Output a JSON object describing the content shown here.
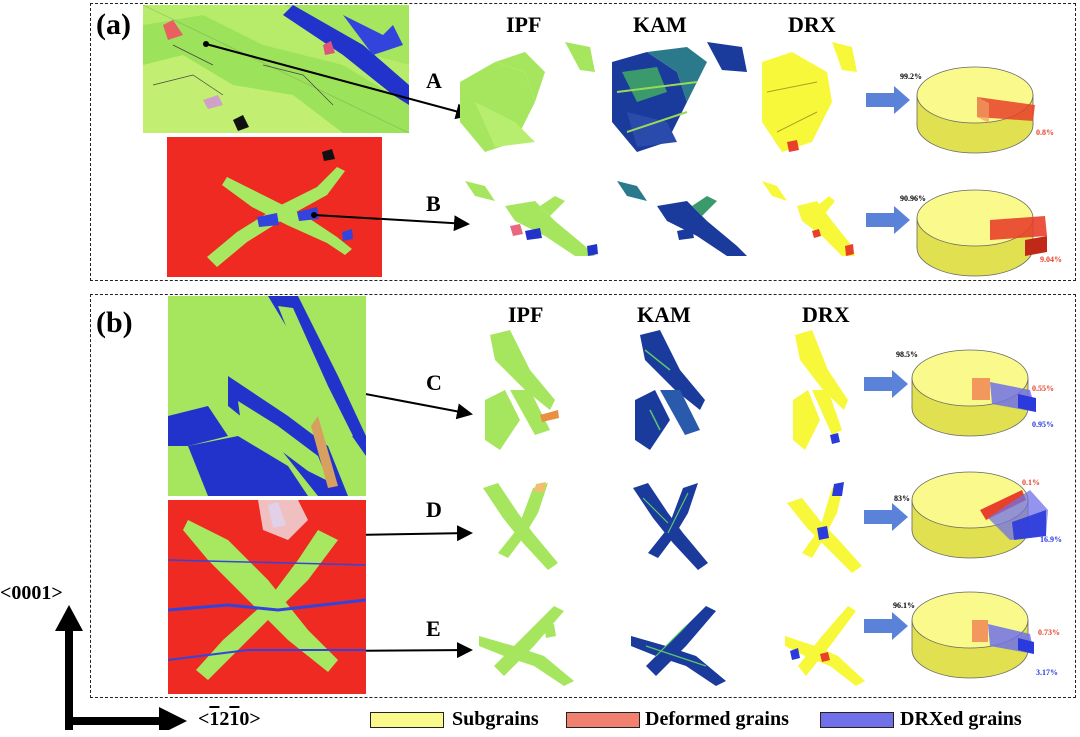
{
  "panels": {
    "a_label": "(a)",
    "b_label": "(b)"
  },
  "columns": [
    "IPF",
    "KAM",
    "DRX"
  ],
  "rows": [
    {
      "label": "A",
      "sub_pct": "99.2%",
      "def_pct": "0.8%",
      "drx_pct": ""
    },
    {
      "label": "B",
      "sub_pct": "90.96%",
      "def_pct": "9.04%",
      "drx_pct": ""
    },
    {
      "label": "C",
      "sub_pct": "98.5%",
      "def_pct": "0.55%",
      "drx_pct": "0.95%"
    },
    {
      "label": "D",
      "sub_pct": "83%",
      "def_pct": "0.1%",
      "drx_pct": "16.9%"
    },
    {
      "label": "E",
      "sub_pct": "96.1%",
      "def_pct": "0.73%",
      "drx_pct": "3.17%"
    }
  ],
  "axes": {
    "vertical": "<0001>",
    "horizontal_prefix": "<",
    "horizontal_bar1": "1",
    "horizontal_mid": "2",
    "horizontal_bar2": "1",
    "horizontal_end": "0>"
  },
  "legend": [
    {
      "label": "Subgrains",
      "color": "#fafa8c"
    },
    {
      "label": "Deformed grains",
      "color": "#f08070"
    },
    {
      "label": "DRXed grains",
      "color": "#7070e8"
    }
  ],
  "colors": {
    "subgrain": "#fafa8c",
    "deformed": "#e8402a",
    "drx": "#2a3adc",
    "ipf_green": "#9be84a",
    "matrix_red": "#ee2a22",
    "kam_blue": "#1a3a9c",
    "arrow_blue": "#5a82d8"
  }
}
